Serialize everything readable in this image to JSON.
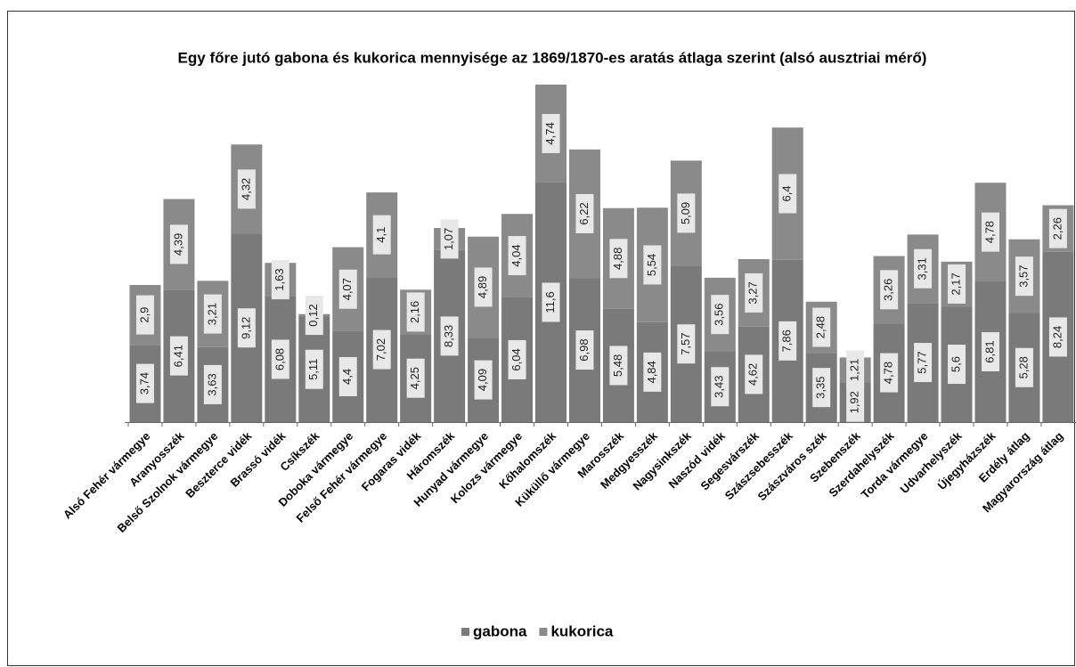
{
  "chart_data": {
    "type": "stacked_bar",
    "title": "Egy főre jutó gabona és kukorica mennyisége az 1869/1870-es aratás átlaga szerint (alsó ausztriai mérő)",
    "categories": [
      "Alsó Fehér vármegye",
      "Aranyosszék",
      "Belső Szolnok vármegye",
      "Beszterce vidék",
      "Brassó vidék",
      "Csíkszék",
      "Doboka vármegye",
      "Felső Fehér vármegye",
      "Fogaras vidék",
      "Háromszék",
      "Hunyad vármegye",
      "Kolozs vármegye",
      "Kőhalomszék",
      "Küküllő vármegye",
      "Marosszék",
      "Medgyesszék",
      "Nagysinkszék",
      "Naszód vidék",
      "Segesvárszék",
      "Szászsebesszék",
      "Szászváros szék",
      "Szebenszék",
      "Szerdahelyszék",
      "Torda vármegye",
      "Udvarhelyszék",
      "Újegyházszék",
      "Erdély átlag",
      "Magyarország átlag"
    ],
    "series": [
      {
        "name": "gabona",
        "color": "#7a7a7a",
        "values": [
          3.74,
          6.41,
          3.63,
          9.12,
          6.08,
          5.11,
          4.4,
          7.02,
          4.25,
          8.33,
          4.09,
          6.04,
          11.6,
          6.98,
          5.48,
          4.84,
          7.57,
          3.43,
          4.62,
          7.86,
          3.35,
          1.92,
          4.78,
          5.77,
          5.6,
          6.81,
          5.28,
          8.24
        ],
        "value_labels": [
          "3,74",
          "6,41",
          "3,63",
          "9,12",
          "6,08",
          "5,11",
          "4,4",
          "7,02",
          "4,25",
          "8,33",
          "4,09",
          "6,04",
          "11,6",
          "6,98",
          "5,48",
          "4,84",
          "7,57",
          "3,43",
          "4,62",
          "7,86",
          "3,35",
          "1,92",
          "4,78",
          "5,77",
          "5,6",
          "6,81",
          "5,28",
          "8,24"
        ]
      },
      {
        "name": "kukorica",
        "color": "#8a8a8a",
        "values": [
          2.9,
          4.39,
          3.21,
          4.32,
          1.63,
          0.12,
          4.07,
          4.1,
          2.16,
          1.07,
          4.89,
          4.04,
          4.74,
          6.22,
          4.88,
          5.54,
          5.09,
          3.56,
          3.27,
          6.4,
          2.48,
          1.21,
          3.26,
          3.31,
          2.17,
          4.78,
          3.57,
          2.26
        ],
        "value_labels": [
          "2,9",
          "4,39",
          "3,21",
          "4,32",
          "1,63",
          "0,12",
          "4,07",
          "4,1",
          "2,16",
          "1,07",
          "4,89",
          "4,04",
          "4,74",
          "6,22",
          "4,88",
          "5,54",
          "5,09",
          "3,56",
          "3,27",
          "6,4",
          "2,48",
          "1,21",
          "3,26",
          "3,31",
          "2,17",
          "4,78",
          "3,57",
          "2,26"
        ]
      }
    ]
  }
}
